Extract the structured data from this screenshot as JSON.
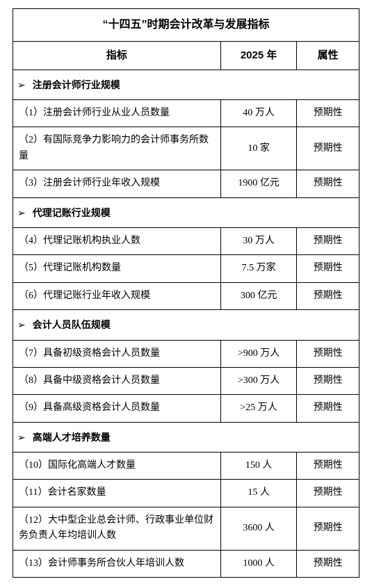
{
  "title": "“十四五”时期会计改革与发展指标",
  "headers": {
    "indicator": "指标",
    "year": "2025 年",
    "attribute": "属性"
  },
  "section_marker": "➢",
  "sections": [
    {
      "name": "注册会计师行业规模",
      "rows": [
        {
          "label": "（1）注册会计师行业从业人员数量",
          "value": "40 万人",
          "attr": "预期性"
        },
        {
          "label": "（2）有国际竞争力影响力的会计师事务所数量",
          "value": "10 家",
          "attr": "预期性"
        },
        {
          "label": "（3）注册会计师行业年收入规模",
          "value": "1900 亿元",
          "attr": "预期性"
        }
      ]
    },
    {
      "name": "代理记账行业规模",
      "rows": [
        {
          "label": "（4）代理记账机构执业人数",
          "value": "30 万人",
          "attr": "预期性"
        },
        {
          "label": "（5）代理记账机构数量",
          "value": "7.5 万家",
          "attr": "预期性"
        },
        {
          "label": "（6）代理记账行业年收入规模",
          "value": "300 亿元",
          "attr": "预期性"
        }
      ]
    },
    {
      "name": "会计人员队伍规模",
      "rows": [
        {
          "label": "（7）具备初级资格会计人员数量",
          "value": ">900 万人",
          "attr": "预期性"
        },
        {
          "label": "（8）具备中级资格会计人员数量",
          "value": ">300 万人",
          "attr": "预期性"
        },
        {
          "label": "（9）具备高级资格会计人员数量",
          "value": ">25 万人",
          "attr": "预期性"
        }
      ]
    },
    {
      "name": "高端人才培养数量",
      "rows": [
        {
          "label": "（10）国际化高端人才数量",
          "value": "150 人",
          "attr": "预期性"
        },
        {
          "label": "（11）会计名家数量",
          "value": "15 人",
          "attr": "预期性"
        },
        {
          "label": "（12）大中型企业总会计师、行政事业单位财务负责人年均培训人数",
          "value": "3600 人",
          "attr": "预期性"
        },
        {
          "label": "（13）会计师事务所合伙人年培训人数",
          "value": "1000 人",
          "attr": "预期性"
        }
      ]
    }
  ]
}
